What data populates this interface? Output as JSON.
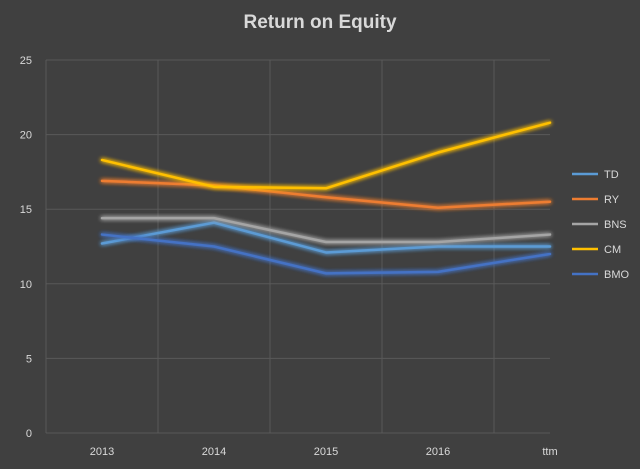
{
  "chart_data": {
    "type": "line",
    "title": "Return on Equity",
    "categories": [
      "2013",
      "2014",
      "2015",
      "2016",
      "ttm"
    ],
    "ylim": [
      0,
      25
    ],
    "yticks": [
      0,
      5,
      10,
      15,
      20,
      25
    ],
    "grid": true,
    "legend_position": "right",
    "series": [
      {
        "name": "TD",
        "color": "#5b9bd5",
        "values": [
          12.7,
          14.1,
          12.1,
          12.5,
          12.5
        ]
      },
      {
        "name": "RY",
        "color": "#ed7d31",
        "values": [
          16.9,
          16.6,
          15.8,
          15.1,
          15.5
        ]
      },
      {
        "name": "BNS",
        "color": "#a5a5a5",
        "values": [
          14.4,
          14.4,
          12.8,
          12.8,
          13.3
        ]
      },
      {
        "name": "CM",
        "color": "#ffc000",
        "values": [
          18.3,
          16.5,
          16.4,
          18.8,
          20.8
        ]
      },
      {
        "name": "BMO",
        "color": "#4472c4",
        "values": [
          13.3,
          12.5,
          10.7,
          10.8,
          12.0
        ]
      }
    ]
  }
}
